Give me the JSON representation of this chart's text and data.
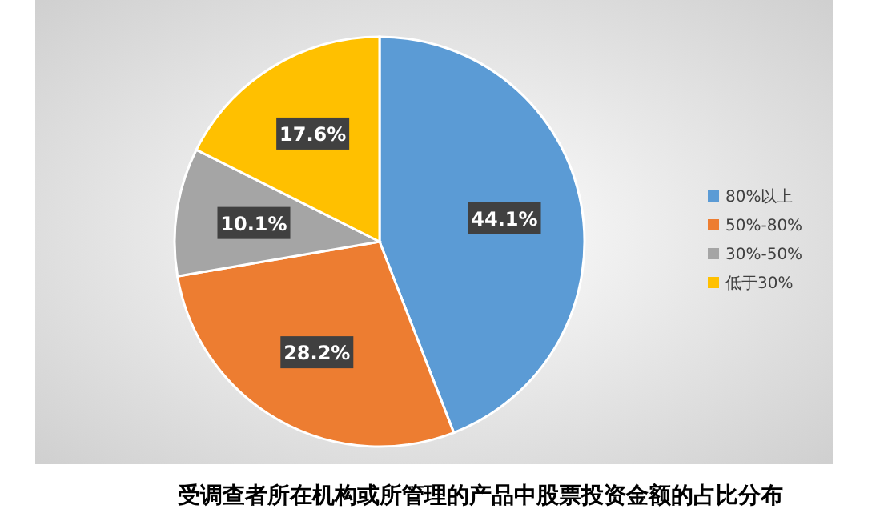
{
  "chart_data": {
    "type": "pie",
    "title": "受调查者所在机构或所管理的产品中股票投资金额的占比分布",
    "categories": [
      "80%以上",
      "50%-80%",
      "30%-50%",
      "低于30%"
    ],
    "values": [
      44.1,
      28.2,
      10.1,
      17.6
    ],
    "colors": [
      "#5b9bd5",
      "#ed7d31",
      "#a5a5a5",
      "#ffc000"
    ],
    "value_labels": [
      "44.1%",
      "28.2%",
      "10.1%",
      "17.6%"
    ],
    "legend": "right"
  }
}
